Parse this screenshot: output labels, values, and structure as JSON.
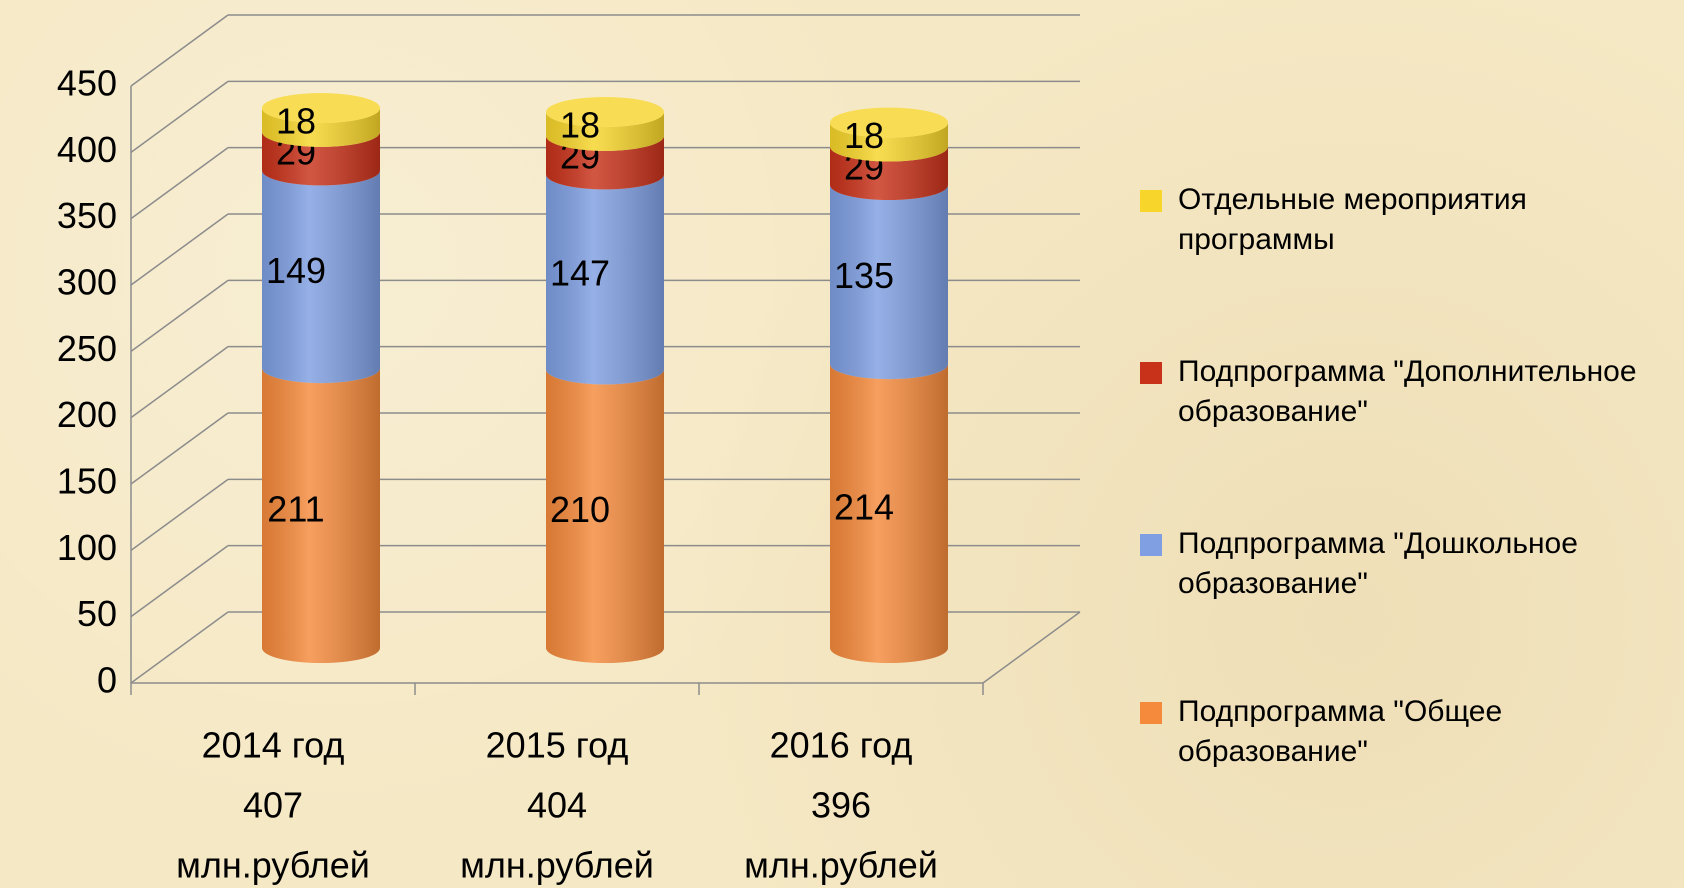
{
  "chart_data": {
    "type": "bar3d_stacked",
    "categories": [
      [
        "2014 год",
        "407",
        "млн.рублей"
      ],
      [
        "2015 год",
        "404",
        "млн.рублей"
      ],
      [
        "2016 год",
        "396",
        "млн.рублей"
      ]
    ],
    "series": [
      {
        "name": "Подпрограмма \"Общее образование\"",
        "color": "#f58a3c",
        "values": [
          211,
          210,
          214
        ]
      },
      {
        "name": "Подпрограмма \"Дошкольное образование\"",
        "color": "#7f9fe2",
        "values": [
          149,
          147,
          135
        ]
      },
      {
        "name": "Подпрограмма \"Дополнительное образование\"",
        "color": "#c8321a",
        "values": [
          29,
          29,
          29
        ]
      },
      {
        "name": "Отдельные мероприятия программы",
        "color": "#f7d52a",
        "values": [
          18,
          18,
          18
        ]
      }
    ],
    "ylim": [
      0,
      450
    ],
    "yticks": [
      0,
      50,
      100,
      150,
      200,
      250,
      300,
      350,
      400,
      450
    ],
    "grid": true
  }
}
